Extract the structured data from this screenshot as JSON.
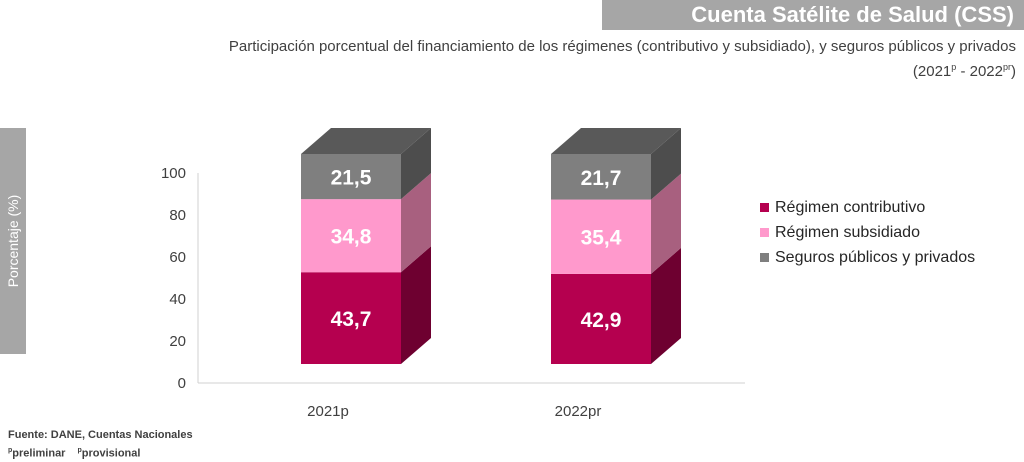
{
  "header": {
    "banner": "Cuenta Satélite de Salud (CSS)",
    "subtitle": "Participación porcentual del financiamiento de los régimenes (contributivo y subsidiado), y seguros públicos y privados",
    "period_open": "(2021",
    "period_sup1": "p",
    "period_mid": " - 2022",
    "period_sup2": "pr",
    "period_close": ")"
  },
  "footer": {
    "source": "Fuente: DANE, Cuentas Nacionales",
    "note1_sup": "p",
    "note1": "preliminar",
    "note2_sup": "p",
    "note2": "provisional"
  },
  "chart_data": {
    "type": "bar",
    "stacked": true,
    "categories": [
      "2021p",
      "2022pr"
    ],
    "series": [
      {
        "name": "Régimen contributivo",
        "values": [
          43.7,
          42.9
        ],
        "labels": [
          "43,7",
          "42,9"
        ],
        "color": "#b5004f",
        "side": "#6e0030",
        "top": "#8a003c"
      },
      {
        "name": "Régimen subsidiado",
        "values": [
          34.8,
          35.4
        ],
        "labels": [
          "34,8",
          "35,4"
        ],
        "color": "#ff99cc",
        "side": "#a8607f",
        "top": "#c47497"
      },
      {
        "name": "Seguros públicos y privados",
        "values": [
          21.5,
          21.7
        ],
        "labels": [
          "21,5",
          "21,7"
        ],
        "color": "#7f7f7f",
        "side": "#4d4d4d",
        "top": "#595959"
      }
    ],
    "ylabel": "Porcentaje (%)",
    "ylim": [
      0,
      100
    ],
    "yticks": [
      0,
      20,
      40,
      60,
      80,
      100
    ],
    "legend": "right",
    "grid": false
  }
}
